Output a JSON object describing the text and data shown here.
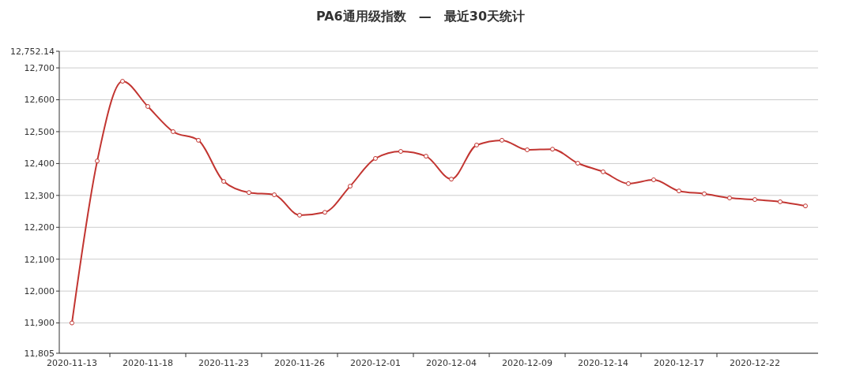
{
  "chart_data": {
    "type": "line",
    "title": "PA6通用级指数　—　最近30天统计",
    "categories": [
      "2020-11-13",
      null,
      null,
      "2020-11-18",
      null,
      null,
      "2020-11-23",
      null,
      null,
      "2020-11-26",
      null,
      null,
      "2020-12-01",
      null,
      null,
      "2020-12-04",
      null,
      null,
      "2020-12-09",
      null,
      null,
      "2020-12-14",
      null,
      null,
      "2020-12-17",
      null,
      null,
      "2020-12-22",
      null,
      null
    ],
    "series": [
      {
        "color": "#c23531",
        "values": [
          11900,
          12408,
          12658,
          12579,
          12500,
          12473,
          12344,
          12309,
          12302,
          12238,
          12247,
          12329,
          12416,
          12438,
          12423,
          12351,
          12458,
          12473,
          12443,
          12445,
          12401,
          12374,
          12337,
          12349,
          12314,
          12305,
          12292,
          12287,
          12280,
          12267
        ]
      }
    ],
    "ylim": [
      11805,
      12752.14
    ],
    "yticks": [
      {
        "value": 11805,
        "label": "11,805"
      },
      {
        "value": 11900,
        "label": "11,900"
      },
      {
        "value": 12000,
        "label": "12,000"
      },
      {
        "value": 12100,
        "label": "12,100"
      },
      {
        "value": 12200,
        "label": "12,200"
      },
      {
        "value": 12300,
        "label": "12,300"
      },
      {
        "value": 12400,
        "label": "12,400"
      },
      {
        "value": 12500,
        "label": "12,500"
      },
      {
        "value": 12600,
        "label": "12,600"
      },
      {
        "value": 12700,
        "label": "12,700"
      },
      {
        "value": 12752.14,
        "label": "12,752.14"
      }
    ],
    "grid": "y",
    "marker": "circle",
    "line_style": "solid"
  }
}
